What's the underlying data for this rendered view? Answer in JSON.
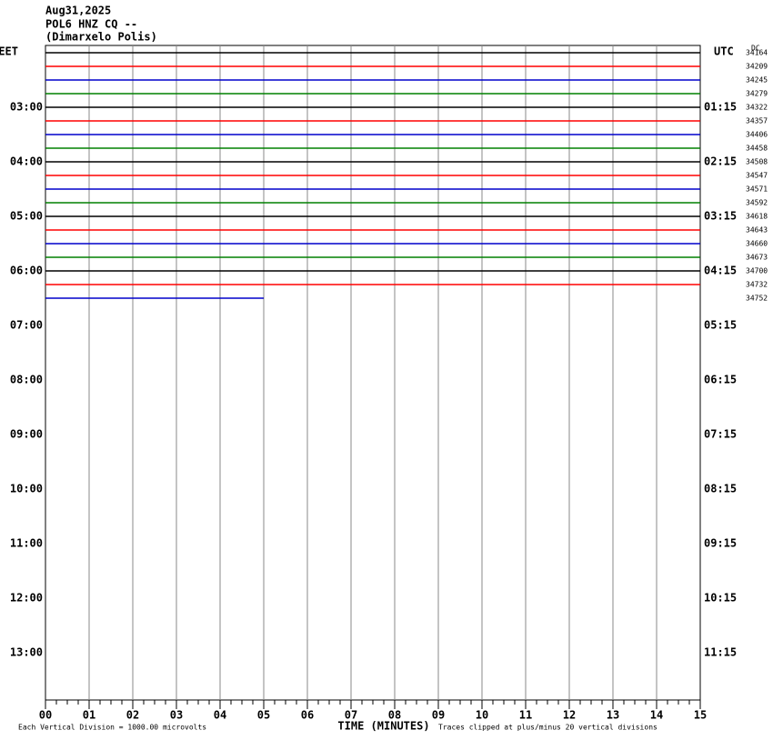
{
  "header": {
    "date": "Aug31,2025",
    "station": "POL6 HNZ CQ --",
    "location": "(Dimarxelo Polis)"
  },
  "left_label": "EET",
  "right_label": "UTC",
  "dc_label": "DC",
  "left_times": [
    "03:00",
    "04:00",
    "05:00",
    "06:00",
    "07:00",
    "08:00",
    "09:00",
    "10:00",
    "11:00",
    "12:00",
    "13:00"
  ],
  "right_times": [
    "01:15",
    "02:15",
    "03:15",
    "04:15",
    "05:15",
    "06:15",
    "07:15",
    "08:15",
    "09:15",
    "10:15",
    "11:15"
  ],
  "traces": [
    {
      "color": "#000000",
      "dc": "34164",
      "end_minute": 15
    },
    {
      "color": "#ff0000",
      "dc": "34209",
      "end_minute": 15
    },
    {
      "color": "#0000cc",
      "dc": "34245",
      "end_minute": 15
    },
    {
      "color": "#008000",
      "dc": "34279",
      "end_minute": 15
    },
    {
      "color": "#000000",
      "dc": "34322",
      "end_minute": 15
    },
    {
      "color": "#ff0000",
      "dc": "34357",
      "end_minute": 15
    },
    {
      "color": "#0000cc",
      "dc": "34406",
      "end_minute": 15
    },
    {
      "color": "#008000",
      "dc": "34458",
      "end_minute": 15
    },
    {
      "color": "#000000",
      "dc": "34508",
      "end_minute": 15
    },
    {
      "color": "#ff0000",
      "dc": "34547",
      "end_minute": 15
    },
    {
      "color": "#0000cc",
      "dc": "34571",
      "end_minute": 15
    },
    {
      "color": "#008000",
      "dc": "34592",
      "end_minute": 15
    },
    {
      "color": "#000000",
      "dc": "34618",
      "end_minute": 15
    },
    {
      "color": "#ff0000",
      "dc": "34643",
      "end_minute": 15
    },
    {
      "color": "#0000cc",
      "dc": "34660",
      "end_minute": 15
    },
    {
      "color": "#008000",
      "dc": "34673",
      "end_minute": 15
    },
    {
      "color": "#000000",
      "dc": "34700",
      "end_minute": 15
    },
    {
      "color": "#ff0000",
      "dc": "34732",
      "end_minute": 15
    },
    {
      "color": "#0000cc",
      "dc": "34752",
      "end_minute": 5
    }
  ],
  "x_axis": {
    "label": "TIME (MINUTES)",
    "ticks": [
      "00",
      "01",
      "02",
      "03",
      "04",
      "05",
      "06",
      "07",
      "08",
      "09",
      "10",
      "11",
      "12",
      "13",
      "14",
      "15"
    ]
  },
  "footer": {
    "scale": "Each Vertical Division = 1000.00 microvolts",
    "clip": "Traces clipped at plus/minus 20 vertical divisions"
  }
}
